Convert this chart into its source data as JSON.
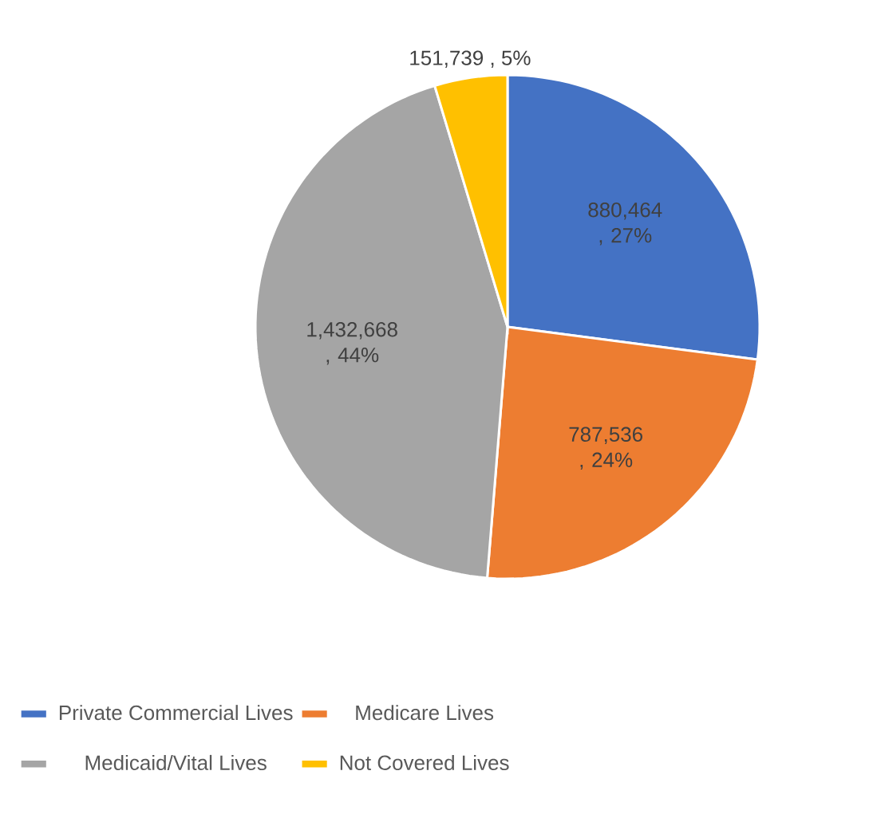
{
  "chart_data": {
    "type": "pie",
    "categories": [
      "Private Commercial Lives",
      "Medicare Lives",
      "Medicaid/Vital Lives",
      "Not Covered Lives"
    ],
    "values": [
      880464,
      787536,
      1432668,
      151739
    ],
    "colors": [
      "#4472c4",
      "#ed7d31",
      "#a5a5a5",
      "#ffc000"
    ],
    "value_labels": [
      "880,464 , 27%",
      "787,536 , 24%",
      "1,432,668 , 44%",
      "151,739 , 5%"
    ],
    "legend": "bottom"
  }
}
